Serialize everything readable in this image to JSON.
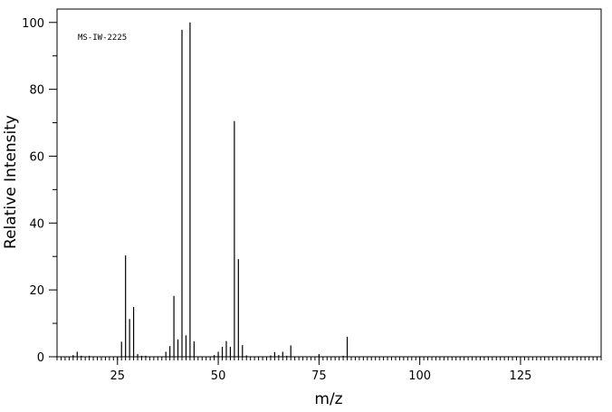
{
  "chart_data": {
    "type": "bar",
    "title": "",
    "annotation": "MS-IW-2225",
    "xlabel": "m/z",
    "ylabel": "Relative Intensity",
    "xlim": [
      10,
      145
    ],
    "ylim": [
      0,
      104
    ],
    "x_ticks": [
      25,
      50,
      75,
      100,
      125
    ],
    "y_ticks": [
      0,
      20,
      40,
      60,
      80,
      100
    ],
    "x_minor_step": 1,
    "y_minor_step": 10,
    "grid": false,
    "legend": "none",
    "color": "#000000",
    "peaks": {
      "x": [
        14,
        15,
        16,
        18,
        26,
        27,
        28,
        29,
        30,
        31,
        32,
        37,
        38,
        39,
        40,
        41,
        42,
        43,
        44,
        49,
        50,
        51,
        52,
        53,
        54,
        55,
        56,
        57,
        63,
        64,
        65,
        66,
        67,
        68,
        75,
        81,
        82
      ],
      "values": [
        0.5,
        1.5,
        0.3,
        0.3,
        4.5,
        30.3,
        11.3,
        14.9,
        0.8,
        0.3,
        0.3,
        1.5,
        3.2,
        18.2,
        5.2,
        97.8,
        6.4,
        100.0,
        4.6,
        0.5,
        1.5,
        3.0,
        4.7,
        3.0,
        70.5,
        29.2,
        3.5,
        0.4,
        0.4,
        1.4,
        0.5,
        1.5,
        0.3,
        3.4,
        0.8,
        0.3,
        6.0
      ]
    }
  }
}
